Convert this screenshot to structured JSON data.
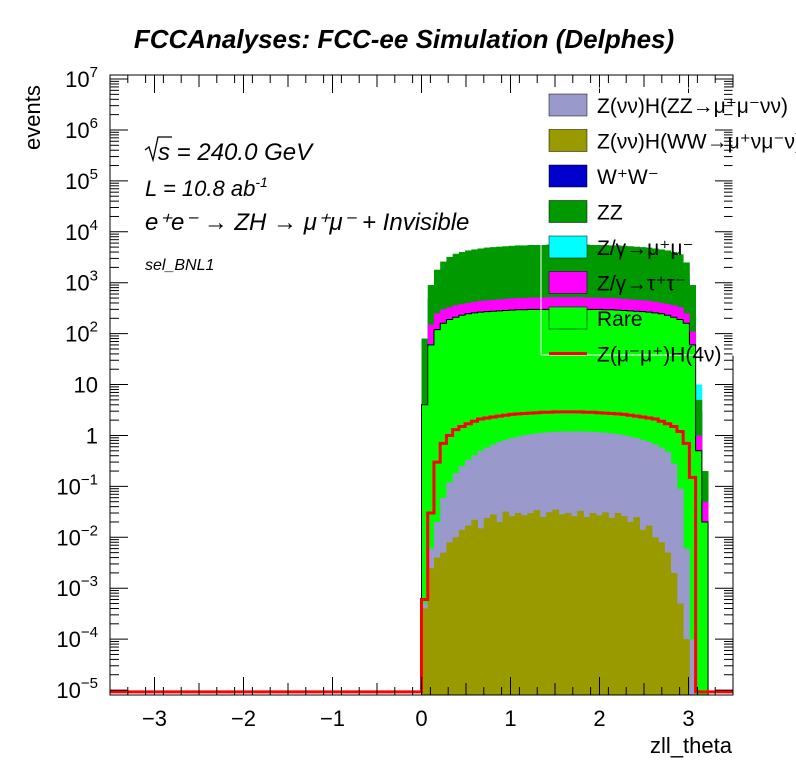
{
  "chart_data": {
    "type": "histogram-stacked",
    "title": "FCCAnalyses: FCC-ee Simulation (Delphes)",
    "xlabel": "zll_theta",
    "ylabel": "events",
    "xlim": [
      -3.5,
      3.5
    ],
    "ylim": [
      8e-06,
      12000000.0
    ],
    "yscale": "log",
    "bins": {
      "lo": 0.0,
      "hi": 3.22,
      "count": 46
    },
    "x_ticks": [
      {
        "value": -3,
        "label": "−3"
      },
      {
        "value": -2,
        "label": "−2"
      },
      {
        "value": -1,
        "label": "−1"
      },
      {
        "value": 0,
        "label": "0"
      },
      {
        "value": 1,
        "label": "1"
      },
      {
        "value": 2,
        "label": "2"
      },
      {
        "value": 3,
        "label": "3"
      }
    ],
    "y_ticks": [
      {
        "value": 1e-05,
        "base": "10",
        "exp": "−5"
      },
      {
        "value": 0.0001,
        "base": "10",
        "exp": "−4"
      },
      {
        "value": 0.001,
        "base": "10",
        "exp": "−3"
      },
      {
        "value": 0.01,
        "base": "10",
        "exp": "−2"
      },
      {
        "value": 0.1,
        "base": "10",
        "exp": "−1"
      },
      {
        "value": 1,
        "base": "1",
        "exp": ""
      },
      {
        "value": 10,
        "base": "10",
        "exp": ""
      },
      {
        "value": 100,
        "base": "10",
        "exp": "2"
      },
      {
        "value": 1000,
        "base": "10",
        "exp": "3"
      },
      {
        "value": 10000,
        "base": "10",
        "exp": "4"
      },
      {
        "value": 100000,
        "base": "10",
        "exp": "5"
      },
      {
        "value": 1000000,
        "base": "10",
        "exp": "6"
      },
      {
        "value": 10000000,
        "base": "10",
        "exp": "7"
      }
    ],
    "annotations": {
      "sqrt_s": "s = 240.0 GeV",
      "lumi": "L = 10.8 ab",
      "lumi_exp": "-1",
      "process": "e⁺e⁻ → ZH → μ⁺μ⁻ + Invisible",
      "selection": "sel_BNL1"
    },
    "colors": {
      "ZZ_mumununu": "#9999cc",
      "WW_mumununu": "#999900",
      "WW": "#0000cc",
      "ZZ": "#009900",
      "Zmumu": "#00ffff",
      "Ztautau": "#ff00ff",
      "Rare": "#00ff00",
      "signal": "#ff0000"
    },
    "stack_totals": [
      {
        "name": "Z(νν)H(ZZ→μ⁺μ⁻νν)",
        "values": [
          0.0005,
          0.006,
          0.02,
          0.06,
          0.12,
          0.18,
          0.25,
          0.33,
          0.41,
          0.5,
          0.58,
          0.66,
          0.75,
          0.82,
          0.89,
          0.95,
          1.01,
          1.06,
          1.1,
          1.13,
          1.16,
          1.18,
          1.19,
          1.2,
          1.2,
          1.2,
          1.19,
          1.18,
          1.16,
          1.13,
          1.1,
          1.06,
          1.01,
          0.95,
          0.89,
          0.82,
          0.75,
          0.66,
          0.58,
          0.48,
          0.28,
          0.09,
          0.006,
          0.0001,
          0.0,
          0.0
        ]
      },
      {
        "name": "Z(νν)H(WW→μ⁺νμ⁻ν)",
        "values": [
          0.0004,
          0.0025,
          0.004,
          0.005,
          0.008,
          0.01,
          0.014,
          0.017,
          0.022,
          0.015,
          0.024,
          0.028,
          0.02,
          0.032,
          0.026,
          0.03,
          0.027,
          0.03,
          0.034,
          0.025,
          0.031,
          0.035,
          0.028,
          0.03,
          0.026,
          0.033,
          0.025,
          0.03,
          0.027,
          0.031,
          0.024,
          0.03,
          0.026,
          0.02,
          0.025,
          0.014,
          0.017,
          0.01,
          0.008,
          0.005,
          0.002,
          0.0005,
          0.0001,
          0.0,
          0.0,
          0.0
        ]
      },
      {
        "name": "W⁺W⁻",
        "values": [
          60,
          500,
          800,
          1000,
          1150,
          1300,
          1400,
          1500,
          1600,
          1700,
          1800,
          1850,
          1900,
          1950,
          2000,
          2050,
          2100,
          2150,
          2200,
          2200,
          2250,
          2250,
          2250,
          2250,
          2250,
          2250,
          2250,
          2250,
          2200,
          2200,
          2150,
          2100,
          2050,
          2000,
          1950,
          1900,
          1850,
          1800,
          1700,
          1600,
          1500,
          1400,
          1200,
          600,
          3,
          0.1
        ]
      },
      {
        "name": "ZZ",
        "values": [
          80,
          900,
          1800,
          2600,
          3200,
          3700,
          4000,
          4300,
          4500,
          4700,
          4900,
          5000,
          5100,
          5200,
          5300,
          5400,
          5400,
          5500,
          5500,
          5500,
          5600,
          5600,
          5600,
          5600,
          5600,
          5600,
          5600,
          5500,
          5500,
          5500,
          5400,
          5400,
          5300,
          5200,
          5100,
          5000,
          4900,
          4700,
          4500,
          4300,
          4000,
          3600,
          2500,
          900,
          5,
          0.2
        ]
      },
      {
        "name": "Z/γ→μ⁺μ⁻",
        "values": [
          6,
          0.2,
          0.2,
          0.1,
          0.1,
          0.1,
          0.1,
          0.1,
          0.1,
          0.1,
          0.1,
          0.1,
          0.1,
          0.1,
          0.1,
          0.1,
          0.1,
          0.1,
          0.1,
          0.1,
          0.1,
          0.1,
          0.1,
          0.1,
          0.1,
          0.1,
          0.1,
          0.1,
          0.1,
          0.1,
          0.1,
          0.1,
          0.1,
          0.1,
          0.1,
          0.1,
          0.1,
          0.1,
          0.1,
          0.1,
          0.1,
          0.2,
          0.5,
          4,
          10,
          0.0
        ]
      },
      {
        "name": "Z/γ→τ⁺τ⁻",
        "values": [
          4,
          150,
          250,
          300,
          330,
          360,
          380,
          400,
          420,
          440,
          450,
          460,
          470,
          480,
          490,
          500,
          500,
          510,
          510,
          510,
          520,
          520,
          520,
          520,
          520,
          520,
          510,
          510,
          510,
          500,
          500,
          490,
          480,
          470,
          460,
          450,
          440,
          420,
          400,
          380,
          360,
          330,
          250,
          110,
          1,
          0.05
        ]
      },
      {
        "name": "Rare",
        "values": [
          4,
          60,
          120,
          160,
          190,
          210,
          230,
          245,
          255,
          265,
          270,
          275,
          280,
          285,
          290,
          295,
          295,
          300,
          300,
          300,
          300,
          300,
          300,
          300,
          300,
          300,
          300,
          300,
          300,
          295,
          295,
          290,
          285,
          280,
          275,
          270,
          265,
          255,
          245,
          230,
          210,
          190,
          160,
          60,
          0.5,
          0.02
        ]
      }
    ],
    "stack_outline": [
      0.0004,
      0.5,
      0.8,
      1.2,
      1.6,
      2.1,
      2.5,
      2.8,
      3.2,
      3.6,
      4.1,
      4.5,
      4.8,
      5.2,
      5.5,
      5.8,
      6.1,
      6.3,
      6.6,
      6.8,
      7.0,
      7.2,
      7.3,
      7.4,
      7.5,
      7.6,
      7.6,
      7.6,
      7.6,
      7.5,
      7.4,
      7.3,
      7.2,
      7.0,
      6.8,
      6.6,
      6.3,
      6.1,
      5.8,
      5.5,
      5.1,
      4.6,
      4.0,
      2.8,
      1.5,
      0.2
    ],
    "signal": {
      "name": "Z(μ⁻μ⁺)H(4ν)",
      "values": [
        0.0006,
        0.03,
        0.3,
        0.7,
        1.0,
        1.3,
        1.5,
        1.7,
        1.9,
        2.1,
        2.2,
        2.3,
        2.4,
        2.5,
        2.6,
        2.65,
        2.7,
        2.75,
        2.8,
        2.85,
        2.85,
        2.9,
        2.9,
        2.9,
        2.9,
        2.9,
        2.85,
        2.85,
        2.8,
        2.75,
        2.7,
        2.65,
        2.6,
        2.5,
        2.4,
        2.3,
        2.2,
        2.1,
        1.9,
        1.7,
        1.5,
        1.2,
        0.7,
        0.15,
        0.0,
        0.0
      ]
    },
    "legend": {
      "placement": "top-right",
      "entries": [
        {
          "key": "ZZ_mumununu",
          "label": "Z(νν)H(ZZ→μ⁺μ⁻νν)",
          "type": "box"
        },
        {
          "key": "WW_mumununu",
          "label": "Z(νν)H(WW→μ⁺νμ⁻ν)",
          "type": "box"
        },
        {
          "key": "WW",
          "label": "W⁺W⁻",
          "type": "box"
        },
        {
          "key": "ZZ",
          "label": "ZZ",
          "type": "box"
        },
        {
          "key": "Zmumu",
          "label": "Z/γ→μ⁺μ⁻",
          "type": "box"
        },
        {
          "key": "Ztautau",
          "label": "Z/γ→τ⁺τ⁻",
          "type": "box"
        },
        {
          "key": "Rare",
          "label": "Rare",
          "type": "box"
        },
        {
          "key": "signal",
          "label": "Z(μ⁻μ⁺)H(4ν)",
          "type": "line"
        }
      ]
    },
    "grid": false
  }
}
